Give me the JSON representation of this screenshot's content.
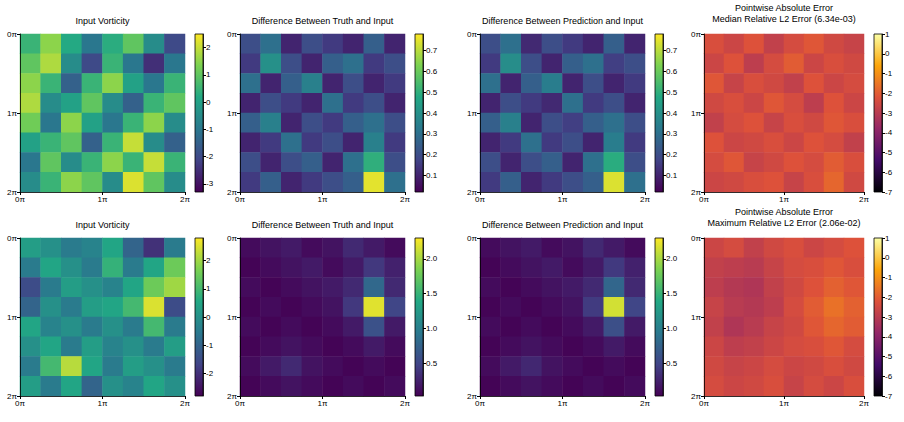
{
  "chart_data": [
    {
      "type": "heatmap",
      "title": "Input Vorticity",
      "color": "viridis",
      "xlim": [
        0,
        2
      ],
      "xticks": [
        {
          "value": 0,
          "label": "0π"
        },
        {
          "value": 1,
          "label": "1π"
        },
        {
          "value": 2,
          "label": "2π"
        }
      ],
      "ylim": [
        0,
        2
      ],
      "yticks": [
        {
          "value": 0,
          "label": "0π"
        },
        {
          "value": 1,
          "label": "1π"
        },
        {
          "value": 2,
          "label": "2π"
        }
      ],
      "colorbar_lim": [
        -3.3,
        2.5
      ],
      "colorbar_ticks": [
        -3,
        -2,
        -1,
        0,
        1,
        2
      ],
      "cells": [
        [
          0.5,
          1.5,
          0.2,
          -1.0,
          0.3,
          1.0,
          -0.5,
          -2.0
        ],
        [
          1.0,
          1.8,
          -0.5,
          -2.0,
          0.5,
          -1.0,
          -2.5,
          -1.0
        ],
        [
          1.5,
          0.5,
          -1.5,
          0.5,
          1.5,
          0.0,
          -1.0,
          0.5
        ],
        [
          1.8,
          -0.5,
          0.0,
          1.0,
          -0.5,
          -1.5,
          0.5,
          1.0
        ],
        [
          1.2,
          -1.0,
          1.5,
          0.0,
          -1.0,
          0.5,
          1.5,
          -0.5
        ],
        [
          0.0,
          0.5,
          1.0,
          -1.5,
          0.5,
          2.0,
          -0.5,
          -1.5
        ],
        [
          -1.0,
          1.0,
          -0.5,
          0.5,
          1.5,
          0.5,
          2.0,
          0.5
        ],
        [
          -0.5,
          0.5,
          1.5,
          1.0,
          -0.5,
          2.2,
          1.0,
          -0.5
        ]
      ]
    },
    {
      "type": "heatmap",
      "title": "Difference Between Truth and Input",
      "color": "viridis",
      "xlim": [
        0,
        2
      ],
      "xticks": [
        {
          "value": 0,
          "label": "0π"
        },
        {
          "value": 1,
          "label": "1π"
        },
        {
          "value": 2,
          "label": "2π"
        }
      ],
      "ylim": [
        0,
        2
      ],
      "yticks": [
        {
          "value": 0,
          "label": "0π"
        },
        {
          "value": 1,
          "label": "1π"
        },
        {
          "value": 2,
          "label": "2π"
        }
      ],
      "colorbar_lim": [
        0.02,
        0.78
      ],
      "colorbar_ticks": [
        0.1,
        0.2,
        0.3,
        0.4,
        0.5,
        0.6,
        0.7
      ],
      "cells": [
        [
          0.2,
          0.3,
          0.1,
          0.2,
          0.15,
          0.1,
          0.25,
          0.1
        ],
        [
          0.15,
          0.4,
          0.2,
          0.1,
          0.25,
          0.3,
          0.15,
          0.2
        ],
        [
          0.3,
          0.1,
          0.25,
          0.35,
          0.1,
          0.2,
          0.1,
          0.15
        ],
        [
          0.1,
          0.2,
          0.15,
          0.1,
          0.3,
          0.15,
          0.2,
          0.1
        ],
        [
          0.25,
          0.35,
          0.1,
          0.2,
          0.15,
          0.25,
          0.3,
          0.2
        ],
        [
          0.1,
          0.15,
          0.3,
          0.15,
          0.2,
          0.1,
          0.35,
          0.15
        ],
        [
          0.2,
          0.1,
          0.2,
          0.25,
          0.1,
          0.3,
          0.5,
          0.2
        ],
        [
          0.15,
          0.25,
          0.1,
          0.15,
          0.2,
          0.25,
          0.75,
          0.3
        ]
      ]
    },
    {
      "type": "heatmap",
      "title": "Difference Between Prediction and Input",
      "color": "viridis",
      "xlim": [
        0,
        2
      ],
      "xticks": [
        {
          "value": 0,
          "label": "0π"
        },
        {
          "value": 1,
          "label": "1π"
        },
        {
          "value": 2,
          "label": "2π"
        }
      ],
      "ylim": [
        0,
        2
      ],
      "yticks": [
        {
          "value": 0,
          "label": "0π"
        },
        {
          "value": 1,
          "label": "1π"
        },
        {
          "value": 2,
          "label": "2π"
        }
      ],
      "colorbar_lim": [
        0.02,
        0.78
      ],
      "colorbar_ticks": [
        0.1,
        0.2,
        0.3,
        0.4,
        0.5,
        0.6,
        0.7
      ],
      "cells": [
        [
          0.2,
          0.3,
          0.11,
          0.2,
          0.15,
          0.1,
          0.25,
          0.1
        ],
        [
          0.15,
          0.39,
          0.2,
          0.1,
          0.25,
          0.3,
          0.16,
          0.2
        ],
        [
          0.3,
          0.1,
          0.25,
          0.34,
          0.1,
          0.2,
          0.1,
          0.15
        ],
        [
          0.1,
          0.2,
          0.15,
          0.11,
          0.3,
          0.15,
          0.2,
          0.1
        ],
        [
          0.25,
          0.35,
          0.1,
          0.2,
          0.16,
          0.25,
          0.3,
          0.2
        ],
        [
          0.1,
          0.15,
          0.3,
          0.15,
          0.2,
          0.1,
          0.34,
          0.15
        ],
        [
          0.2,
          0.1,
          0.2,
          0.25,
          0.1,
          0.3,
          0.49,
          0.2
        ],
        [
          0.15,
          0.25,
          0.1,
          0.15,
          0.2,
          0.25,
          0.74,
          0.3
        ]
      ]
    },
    {
      "type": "heatmap",
      "title": "Pointwise Absolute Error",
      "subtitle": "Median Relative L2 Error (6.34e-03)",
      "color": "inferno",
      "xlim": [
        0,
        2
      ],
      "xticks": [
        {
          "value": 0,
          "label": "0π"
        },
        {
          "value": 1,
          "label": "1π"
        },
        {
          "value": 2,
          "label": "2π"
        }
      ],
      "ylim": [
        0,
        2
      ],
      "yticks": [
        {
          "value": 0,
          "label": "0π"
        },
        {
          "value": 1,
          "label": "1π"
        },
        {
          "value": 2,
          "label": "2π"
        }
      ],
      "colorbar_lim": [
        -7,
        1
      ],
      "colorbar_ticks": [
        -7,
        -6,
        -5,
        -4,
        -3,
        -2,
        -1,
        0,
        1
      ],
      "cells": [
        [
          -2.3,
          -2.6,
          -2.2,
          -2.8,
          -2.4,
          -2.1,
          -2.5,
          -2.7
        ],
        [
          -2.6,
          -2.2,
          -2.9,
          -2.4,
          -2.0,
          -2.6,
          -2.3,
          -2.5
        ],
        [
          -2.1,
          -2.7,
          -2.3,
          -2.5,
          -2.8,
          -2.2,
          -2.6,
          -2.4
        ],
        [
          -2.5,
          -2.3,
          -2.6,
          -2.1,
          -2.4,
          -2.9,
          -2.2,
          -2.6
        ],
        [
          -2.8,
          -2.4,
          -2.2,
          -2.7,
          -2.3,
          -2.5,
          -2.1,
          -2.3
        ],
        [
          -2.2,
          -2.6,
          -2.5,
          -2.3,
          -2.6,
          -2.2,
          -2.4,
          -2.8
        ],
        [
          -2.4,
          -2.1,
          -2.7,
          -2.5,
          -2.2,
          -2.4,
          -2.0,
          -2.3
        ],
        [
          -2.6,
          -2.5,
          -2.3,
          -2.2,
          -2.7,
          -2.3,
          -1.8,
          -2.5
        ]
      ]
    },
    {
      "type": "heatmap",
      "title": "Input Vorticity",
      "color": "viridis",
      "xlim": [
        0,
        2
      ],
      "xticks": [
        {
          "value": 0,
          "label": "0π"
        },
        {
          "value": 1,
          "label": "1π"
        },
        {
          "value": 2,
          "label": "2π"
        }
      ],
      "ylim": [
        0,
        2
      ],
      "yticks": [
        {
          "value": 0,
          "label": "0π"
        },
        {
          "value": 1,
          "label": "1π"
        },
        {
          "value": 2,
          "label": "2π"
        }
      ],
      "colorbar_lim": [
        -2.8,
        2.8
      ],
      "colorbar_ticks": [
        -2,
        -1,
        0,
        1,
        2
      ],
      "cells": [
        [
          0.3,
          0.0,
          -0.5,
          -0.3,
          0.5,
          -1.0,
          -2.0,
          -0.5
        ],
        [
          -0.5,
          0.5,
          0.0,
          -0.5,
          0.8,
          -0.5,
          0.5,
          1.5
        ],
        [
          -1.5,
          -0.5,
          0.3,
          0.0,
          -0.3,
          0.5,
          1.5,
          2.0
        ],
        [
          -1.0,
          0.0,
          -0.5,
          0.3,
          0.5,
          1.0,
          2.5,
          -1.5
        ],
        [
          0.5,
          -0.3,
          0.0,
          -0.5,
          0.0,
          -0.5,
          1.0,
          -0.5
        ],
        [
          0.0,
          0.5,
          -0.5,
          0.3,
          -0.3,
          0.0,
          -0.5,
          0.3
        ],
        [
          -0.5,
          1.0,
          2.2,
          0.5,
          -0.5,
          0.3,
          0.0,
          -0.5
        ],
        [
          0.3,
          -0.5,
          0.5,
          -1.0,
          0.0,
          -0.3,
          0.5,
          0.0
        ]
      ]
    },
    {
      "type": "heatmap",
      "title": "Difference Between Truth and Input",
      "color": "viridis",
      "xlim": [
        0,
        2
      ],
      "xticks": [
        {
          "value": 0,
          "label": "0π"
        },
        {
          "value": 1,
          "label": "1π"
        },
        {
          "value": 2,
          "label": "2π"
        }
      ],
      "ylim": [
        0,
        2
      ],
      "yticks": [
        {
          "value": 0,
          "label": "0π"
        },
        {
          "value": 1,
          "label": "1π"
        },
        {
          "value": 2,
          "label": "2π"
        }
      ],
      "colorbar_lim": [
        0.03,
        2.3
      ],
      "colorbar_ticks": [
        {
          "value": 0.5,
          "label": "0.5"
        },
        {
          "value": 1,
          "label": "1.0"
        },
        {
          "value": 1.5,
          "label": "1.5"
        },
        {
          "value": 2,
          "label": "2.0"
        }
      ],
      "cells": [
        [
          0.1,
          0.15,
          0.2,
          0.1,
          0.15,
          0.3,
          0.2,
          0.1
        ],
        [
          0.05,
          0.1,
          0.15,
          0.2,
          0.1,
          0.2,
          0.4,
          0.25
        ],
        [
          0.1,
          0.05,
          0.1,
          0.15,
          0.2,
          0.3,
          0.8,
          0.3
        ],
        [
          0.05,
          0.1,
          0.05,
          0.1,
          0.15,
          0.4,
          2.2,
          0.5
        ],
        [
          0.1,
          0.05,
          0.1,
          0.05,
          0.1,
          0.2,
          0.6,
          0.2
        ],
        [
          0.05,
          0.1,
          0.15,
          0.1,
          0.05,
          0.1,
          0.2,
          0.1
        ],
        [
          0.1,
          0.2,
          0.3,
          0.15,
          0.1,
          0.05,
          0.1,
          0.05
        ],
        [
          0.05,
          0.1,
          0.15,
          0.1,
          0.05,
          0.1,
          0.05,
          0.1
        ]
      ]
    },
    {
      "type": "heatmap",
      "title": "Difference Between Prediction and Input",
      "color": "viridis",
      "xlim": [
        0,
        2
      ],
      "xticks": [
        {
          "value": 0,
          "label": "0π"
        },
        {
          "value": 1,
          "label": "1π"
        },
        {
          "value": 2,
          "label": "2π"
        }
      ],
      "ylim": [
        0,
        2
      ],
      "yticks": [
        {
          "value": 0,
          "label": "0π"
        },
        {
          "value": 1,
          "label": "1π"
        },
        {
          "value": 2,
          "label": "2π"
        }
      ],
      "colorbar_lim": [
        0.03,
        2.3
      ],
      "colorbar_ticks": [
        {
          "value": 0.5,
          "label": "0.5"
        },
        {
          "value": 1,
          "label": "1.0"
        },
        {
          "value": 1.5,
          "label": "1.5"
        },
        {
          "value": 2,
          "label": "2.0"
        }
      ],
      "cells": [
        [
          0.1,
          0.15,
          0.2,
          0.1,
          0.15,
          0.3,
          0.2,
          0.1
        ],
        [
          0.05,
          0.1,
          0.15,
          0.2,
          0.1,
          0.2,
          0.41,
          0.25
        ],
        [
          0.1,
          0.05,
          0.1,
          0.15,
          0.2,
          0.3,
          0.78,
          0.3
        ],
        [
          0.05,
          0.1,
          0.05,
          0.1,
          0.15,
          0.42,
          2.15,
          0.5
        ],
        [
          0.1,
          0.05,
          0.1,
          0.05,
          0.1,
          0.2,
          0.58,
          0.2
        ],
        [
          0.05,
          0.1,
          0.15,
          0.1,
          0.05,
          0.1,
          0.2,
          0.1
        ],
        [
          0.1,
          0.2,
          0.29,
          0.15,
          0.1,
          0.05,
          0.1,
          0.05
        ],
        [
          0.05,
          0.1,
          0.15,
          0.1,
          0.05,
          0.1,
          0.05,
          0.1
        ]
      ]
    },
    {
      "type": "heatmap",
      "title": "Pointwise Absolute Error",
      "subtitle": "Maximum Relative L2 Error (2.06e-02)",
      "color": "inferno",
      "xlim": [
        0,
        2
      ],
      "xticks": [
        {
          "value": 0,
          "label": "0π"
        },
        {
          "value": 1,
          "label": "1π"
        },
        {
          "value": 2,
          "label": "2π"
        }
      ],
      "ylim": [
        0,
        2
      ],
      "yticks": [
        {
          "value": 0,
          "label": "0π"
        },
        {
          "value": 1,
          "label": "1π"
        },
        {
          "value": 2,
          "label": "2π"
        }
      ],
      "colorbar_lim": [
        -7,
        1
      ],
      "colorbar_ticks": [
        -7,
        -6,
        -5,
        -4,
        -3,
        -2,
        -1,
        0,
        1
      ],
      "cells": [
        [
          -2.6,
          -2.4,
          -2.8,
          -2.5,
          -2.3,
          -2.6,
          -2.4,
          -2.2
        ],
        [
          -2.8,
          -2.9,
          -3.0,
          -2.7,
          -2.4,
          -2.3,
          -2.1,
          -2.3
        ],
        [
          -2.9,
          -3.1,
          -3.2,
          -2.8,
          -2.5,
          -2.2,
          -1.9,
          -2.1
        ],
        [
          -2.7,
          -3.0,
          -3.1,
          -2.9,
          -2.4,
          -2.0,
          -1.6,
          -1.9
        ],
        [
          -2.8,
          -3.2,
          -3.0,
          -2.7,
          -2.5,
          -2.1,
          -1.8,
          -2.0
        ],
        [
          -2.6,
          -2.9,
          -2.8,
          -2.6,
          -2.4,
          -2.3,
          -2.1,
          -2.4
        ],
        [
          -2.5,
          -2.7,
          -2.6,
          -2.4,
          -2.6,
          -2.5,
          -2.3,
          -2.5
        ],
        [
          -2.4,
          -2.6,
          -2.5,
          -2.3,
          -2.7,
          -2.4,
          -2.6,
          -2.3
        ]
      ]
    }
  ]
}
